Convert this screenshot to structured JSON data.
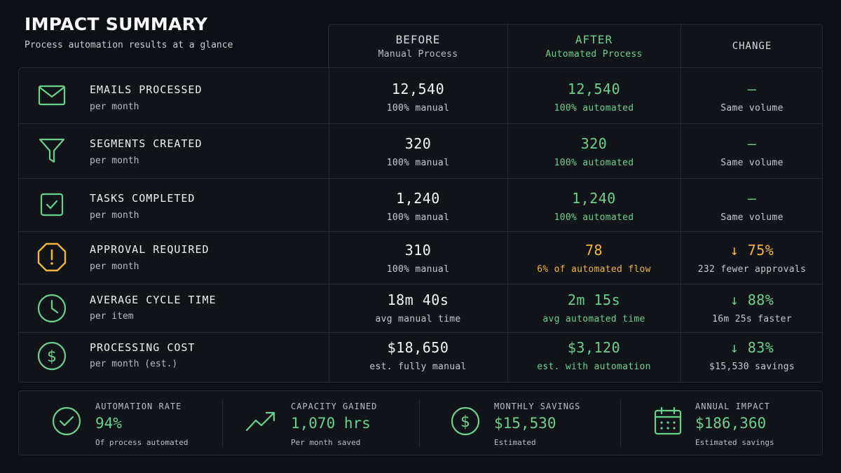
{
  "header": {
    "title": "IMPACT SUMMARY",
    "subtitle": "Process automation results at a glance"
  },
  "columns": {
    "before": {
      "label": "BEFORE",
      "sub": "Manual Process"
    },
    "after": {
      "label": "AFTER",
      "sub": "Automated Process"
    },
    "change": {
      "label": "CHANGE"
    }
  },
  "colors": {
    "green": "#6dcf8e",
    "amber": "#f3b63c",
    "background": "#0c0f13"
  },
  "rows": [
    {
      "icon": "email-icon",
      "label": "EMAILS PROCESSED",
      "unit": "per month",
      "before": {
        "value": "12,540",
        "note": "100% manual"
      },
      "after": {
        "value": "12,540",
        "note": "100% automated"
      },
      "change": {
        "value": "—",
        "note": "Same volume"
      }
    },
    {
      "icon": "filter-icon",
      "label": "SEGMENTS CREATED",
      "unit": "per month",
      "before": {
        "value": "320",
        "note": "100% manual"
      },
      "after": {
        "value": "320",
        "note": "100% automated"
      },
      "change": {
        "value": "—",
        "note": "Same volume"
      }
    },
    {
      "icon": "checkbox-icon",
      "label": "TASKS COMPLETED",
      "unit": "per month",
      "before": {
        "value": "1,240",
        "note": "100% manual"
      },
      "after": {
        "value": "1,240",
        "note": "100% automated"
      },
      "change": {
        "value": "—",
        "note": "Same volume"
      }
    },
    {
      "icon": "warning-octagon-icon",
      "label": "APPROVAL REQUIRED",
      "unit": "per month",
      "before": {
        "value": "310",
        "note": "100% manual"
      },
      "after": {
        "value": "78",
        "note": "6% of automated flow"
      },
      "change": {
        "value": "↓ 75%",
        "note": "232 fewer approvals"
      }
    },
    {
      "icon": "clock-icon",
      "label": "AVERAGE CYCLE TIME",
      "unit": "per item",
      "before": {
        "value": "18m 40s",
        "note": "avg manual time"
      },
      "after": {
        "value": "2m 15s",
        "note": "avg automated time"
      },
      "change": {
        "value": "↓ 88%",
        "note": "16m 25s faster"
      }
    },
    {
      "icon": "dollar-circle-icon",
      "label": "PROCESSING COST",
      "unit": "per month (est.)",
      "before": {
        "value": "$18,650",
        "note": "est. fully manual"
      },
      "after": {
        "value": "$3,120",
        "note": "est. with automation"
      },
      "change": {
        "value": "↓ 83%",
        "note": "$15,530 savings"
      }
    }
  ],
  "footer": [
    {
      "icon": "check-circle-icon",
      "label": "AUTOMATION RATE",
      "value": "94%",
      "sub": "Of process automated"
    },
    {
      "icon": "trend-up-icon",
      "label": "CAPACITY GAINED",
      "value": "1,070 hrs",
      "sub": "Per month saved"
    },
    {
      "icon": "dollar-circle-icon",
      "label": "MONTHLY SAVINGS",
      "value": "$15,530",
      "sub": "Estimated"
    },
    {
      "icon": "calendar-icon",
      "label": "ANNUAL IMPACT",
      "value": "$186,360",
      "sub": "Estimated savings"
    }
  ]
}
